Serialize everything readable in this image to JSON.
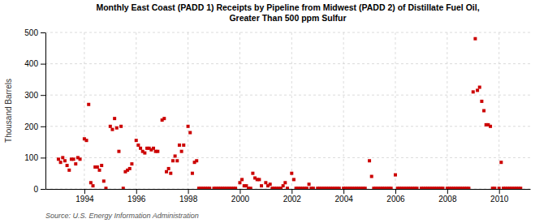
{
  "chart_data": {
    "type": "scatter",
    "title": "Monthly East Coast (PADD 1) Receipts by Pipeline from Midwest (PADD 2) of Distillate Fuel Oil,\nGreater Than 500 ppm Sulfur",
    "ylabel": "Thousand Barrels",
    "annotations": [
      "Source: U.S. Energy Information Administration"
    ],
    "color": "#cc0000",
    "marker": "square",
    "grid": true,
    "xlim": [
      1992.5,
      2011.2
    ],
    "xticks": [
      1994,
      1996,
      1998,
      2000,
      2002,
      2004,
      2006,
      2008,
      2010
    ],
    "ylim": [
      0,
      500
    ],
    "yticks": [
      0,
      100,
      200,
      300,
      400,
      500
    ],
    "x": [
      1993.0,
      1993.083,
      1993.167,
      1993.25,
      1993.333,
      1993.417,
      1993.5,
      1993.583,
      1993.667,
      1993.75,
      1993.833,
      1994.0,
      1994.083,
      1994.167,
      1994.25,
      1994.333,
      1994.417,
      1994.5,
      1994.583,
      1994.667,
      1994.75,
      1994.833,
      1995.0,
      1995.083,
      1995.167,
      1995.25,
      1995.333,
      1995.417,
      1995.5,
      1995.583,
      1995.667,
      1995.75,
      1995.833,
      1996.0,
      1996.083,
      1996.167,
      1996.25,
      1996.333,
      1996.417,
      1996.5,
      1996.583,
      1996.667,
      1996.75,
      1996.833,
      1997.0,
      1997.083,
      1997.167,
      1997.25,
      1997.333,
      1997.417,
      1997.5,
      1997.583,
      1997.667,
      1997.75,
      1997.833,
      1998.0,
      1998.083,
      1998.167,
      1998.25,
      1998.333,
      1998.417,
      1998.5,
      1998.583,
      1998.667,
      1998.75,
      1998.833,
      1999.0,
      1999.083,
      1999.167,
      1999.25,
      1999.333,
      1999.417,
      1999.5,
      1999.583,
      1999.667,
      1999.75,
      1999.833,
      2000.0,
      2000.083,
      2000.167,
      2000.25,
      2000.333,
      2000.417,
      2000.5,
      2000.583,
      2000.667,
      2000.75,
      2000.833,
      2001.0,
      2001.083,
      2001.167,
      2001.25,
      2001.333,
      2001.417,
      2001.5,
      2001.583,
      2001.667,
      2001.75,
      2001.833,
      2002.0,
      2002.083,
      2002.167,
      2002.25,
      2002.333,
      2002.417,
      2002.5,
      2002.583,
      2002.667,
      2002.75,
      2002.833,
      2003.0,
      2003.083,
      2003.167,
      2003.25,
      2003.333,
      2003.417,
      2003.5,
      2003.583,
      2003.667,
      2003.75,
      2003.833,
      2004.0,
      2004.083,
      2004.167,
      2004.25,
      2004.333,
      2004.417,
      2004.5,
      2004.583,
      2004.667,
      2004.75,
      2004.833,
      2005.0,
      2005.083,
      2005.167,
      2005.25,
      2005.333,
      2005.417,
      2005.5,
      2005.583,
      2005.667,
      2005.75,
      2005.833,
      2006.0,
      2006.083,
      2006.167,
      2006.25,
      2006.333,
      2006.417,
      2006.5,
      2006.583,
      2006.667,
      2006.75,
      2006.833,
      2007.0,
      2007.083,
      2007.167,
      2007.25,
      2007.333,
      2007.417,
      2007.5,
      2007.583,
      2007.667,
      2007.75,
      2007.833,
      2008.0,
      2008.083,
      2008.167,
      2008.25,
      2008.333,
      2008.417,
      2008.5,
      2008.583,
      2008.667,
      2008.75,
      2008.833,
      2009.0,
      2009.083,
      2009.167,
      2009.25,
      2009.333,
      2009.417,
      2009.5,
      2009.583,
      2009.667,
      2009.75,
      2009.833,
      2010.0,
      2010.083,
      2010.167,
      2010.25,
      2010.333,
      2010.417,
      2010.5,
      2010.583,
      2010.667,
      2010.75,
      2010.833
    ],
    "values": [
      95,
      85,
      100,
      90,
      75,
      60,
      95,
      95,
      80,
      100,
      95,
      160,
      155,
      270,
      20,
      10,
      70,
      70,
      60,
      75,
      25,
      2,
      200,
      190,
      225,
      195,
      120,
      200,
      2,
      55,
      60,
      65,
      80,
      155,
      140,
      130,
      120,
      115,
      130,
      130,
      125,
      130,
      120,
      120,
      220,
      225,
      55,
      65,
      50,
      90,
      105,
      90,
      140,
      120,
      140,
      200,
      180,
      50,
      85,
      90,
      2,
      2,
      2,
      2,
      2,
      2,
      2,
      2,
      2,
      2,
      2,
      2,
      2,
      2,
      2,
      2,
      2,
      20,
      30,
      10,
      10,
      2,
      2,
      50,
      35,
      30,
      30,
      10,
      20,
      10,
      15,
      2,
      2,
      2,
      2,
      2,
      10,
      20,
      2,
      50,
      30,
      2,
      2,
      2,
      2,
      2,
      2,
      15,
      2,
      2,
      2,
      2,
      2,
      2,
      2,
      2,
      2,
      2,
      2,
      2,
      2,
      2,
      2,
      2,
      2,
      2,
      2,
      2,
      2,
      2,
      2,
      2,
      90,
      40,
      2,
      2,
      2,
      2,
      2,
      2,
      2,
      2,
      2,
      45,
      2,
      2,
      2,
      2,
      2,
      2,
      2,
      2,
      2,
      2,
      2,
      2,
      2,
      2,
      2,
      2,
      2,
      2,
      2,
      2,
      2,
      2,
      2,
      2,
      2,
      2,
      2,
      2,
      2,
      2,
      2,
      2,
      310,
      480,
      315,
      325,
      280,
      250,
      205,
      205,
      200,
      2,
      2,
      2,
      85,
      2,
      2,
      2,
      2,
      2,
      2,
      2,
      2,
      2
    ]
  }
}
